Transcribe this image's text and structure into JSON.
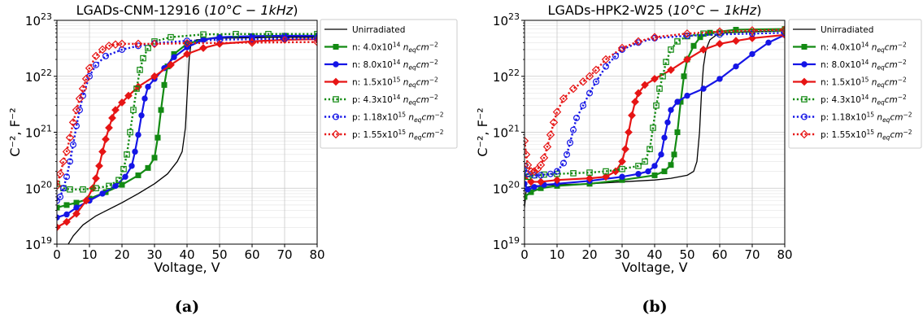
{
  "panels": [
    {
      "caption": "(a)",
      "title_main": "LGADs-CNM-12916 (",
      "title_math": "10°C − 1kHz",
      "title_close": ")",
      "xlabel": "Voltage, V",
      "ylabel": "C⁻², F⁻²"
    },
    {
      "caption": "(b)",
      "title_main": "LGADs-HPK2-W25 (",
      "title_math": "10°C − 1kHz",
      "title_close": ")",
      "xlabel": "Voltage, V",
      "ylabel": "C⁻², F⁻²"
    }
  ],
  "legend": [
    {
      "prefix": "",
      "mantissa": "",
      "exp": "",
      "label": "Unirradiated"
    },
    {
      "prefix": "n: ",
      "mantissa": "4.0x10",
      "exp": "14"
    },
    {
      "prefix": "n: ",
      "mantissa": "8.0x10",
      "exp": "14"
    },
    {
      "prefix": "n: ",
      "mantissa": "1.5x10",
      "exp": "15"
    },
    {
      "prefix": "p: ",
      "mantissa": "4.3x10",
      "exp": "14"
    },
    {
      "prefix": "p: ",
      "mantissa": "1.18x10",
      "exp": "15"
    },
    {
      "prefix": "p: ",
      "mantissa": "1.55x10",
      "exp": "15"
    }
  ],
  "legend_unit": {
    "n": "n",
    "sub": "eq",
    "cm": "cm",
    "exp": "−2"
  },
  "colors": {
    "unirr": "#000000",
    "green": "#138a13",
    "blue": "#1515e6",
    "red": "#e61515"
  },
  "chart_data": [
    {
      "type": "line",
      "title": "LGADs-CNM-12916 (10°C − 1kHz)",
      "xlabel": "Voltage, V",
      "ylabel": "C⁻², F⁻²",
      "xlim": [
        0,
        80
      ],
      "ylim": [
        1e+19,
        1e+23
      ],
      "yscale": "log",
      "grid": true,
      "xticks": [
        "0",
        "10",
        "20",
        "30",
        "40",
        "50",
        "60",
        "70",
        "80"
      ],
      "yticks": [
        {
          "base": "10",
          "exp": "19",
          "value": 1e+19
        },
        {
          "base": "10",
          "exp": "20",
          "value": 1e+20
        },
        {
          "base": "10",
          "exp": "21",
          "value": 1e+21
        },
        {
          "base": "10",
          "exp": "22",
          "value": 1e+22
        },
        {
          "base": "10",
          "exp": "23",
          "value": 1e+23
        }
      ],
      "series": [
        {
          "name": "Unirradiated",
          "color": "#000000",
          "style": "solid",
          "marker": "none",
          "x": [
            3,
            5,
            8,
            12,
            16,
            20,
            25,
            30,
            34,
            37,
            38.5,
            39.5,
            40.2,
            40.7,
            41.2,
            43,
            50,
            60,
            70,
            80
          ],
          "y": [
            9e+18,
            1.4e+19,
            2.2e+19,
            3.2e+19,
            4.2e+19,
            5.5e+19,
            8e+19,
            1.2e+20,
            1.8e+20,
            3e+20,
            4.5e+20,
            1.2e+21,
            7e+21,
            2.2e+22,
            3.8e+22,
            4.5e+22,
            4.8e+22,
            4.9e+22,
            5e+22,
            5e+22
          ]
        },
        {
          "name": "n: 4.0x10^14 n_eq cm^-2",
          "color": "#138a13",
          "style": "solid",
          "marker": "square",
          "x": [
            0,
            3,
            6,
            10,
            15,
            20,
            25,
            28,
            30,
            31,
            32,
            33,
            34,
            36,
            40,
            45,
            50,
            60,
            70,
            80
          ],
          "y": [
            4.5e+19,
            5e+19,
            5.5e+19,
            6.5e+19,
            8.5e+19,
            1.15e+20,
            1.7e+20,
            2.3e+20,
            3.5e+20,
            8e+20,
            2.5e+21,
            7e+21,
            1.5e+22,
            2.5e+22,
            3.8e+22,
            4.6e+22,
            5e+22,
            5.2e+22,
            5.3e+22,
            5.3e+22
          ]
        },
        {
          "name": "n: 8.0x10^14 n_eq cm^-2",
          "color": "#1515e6",
          "style": "solid",
          "marker": "circle",
          "x": [
            0,
            3,
            6,
            10,
            14,
            18,
            21,
            23,
            24,
            25,
            26,
            27,
            28,
            30,
            33,
            36,
            40,
            45,
            50,
            60,
            70,
            80
          ],
          "y": [
            3e+19,
            3.4e+19,
            4.5e+19,
            6e+19,
            8e+19,
            1.1e+20,
            1.6e+20,
            2.5e+20,
            4.5e+20,
            9e+20,
            2e+21,
            4e+21,
            6.5e+21,
            9e+21,
            1.4e+22,
            2.2e+22,
            3.3e+22,
            4.5e+22,
            5e+22,
            5.2e+22,
            5.3e+22,
            5.3e+22
          ]
        },
        {
          "name": "n: 1.5x10^15 n_eq cm^-2",
          "color": "#e61515",
          "style": "solid",
          "marker": "diamond",
          "x": [
            0,
            3,
            6,
            9,
            11,
            12,
            13,
            14,
            15,
            16,
            17,
            18,
            20,
            22,
            25,
            30,
            35,
            40,
            45,
            50,
            60,
            70,
            80
          ],
          "y": [
            2e+19,
            2.5e+19,
            3.5e+19,
            6e+19,
            1e+20,
            1.5e+20,
            2.5e+20,
            4.5e+20,
            7.5e+20,
            1.2e+21,
            1.8e+21,
            2.5e+21,
            3.4e+21,
            4.5e+21,
            6.5e+21,
            1e+22,
            1.6e+22,
            2.5e+22,
            3.2e+22,
            3.8e+22,
            4.2e+22,
            4.5e+22,
            4.6e+22
          ]
        },
        {
          "name": "p: 4.3x10^14 n_eq cm^-2",
          "color": "#138a13",
          "style": "dotted",
          "marker": "square-open",
          "x": [
            0,
            2,
            4,
            8,
            12,
            16,
            19,
            20.5,
            21.5,
            22.5,
            23.5,
            24.5,
            25.5,
            26.5,
            28,
            30,
            35,
            45,
            55,
            65,
            80
          ],
          "y": [
            1.2e+20,
            1e+20,
            9.5e+19,
            9.5e+19,
            1e+20,
            1.1e+20,
            1.4e+20,
            2.2e+20,
            4e+20,
            1e+21,
            2.5e+21,
            6e+21,
            1.3e+22,
            2.1e+22,
            3.2e+22,
            4.2e+22,
            5e+22,
            5.6e+22,
            5.7e+22,
            5.7e+22,
            5.7e+22
          ]
        },
        {
          "name": "p: 1.18x10^15 n_eq cm^-2",
          "color": "#1515e6",
          "style": "dotted",
          "marker": "circle-open",
          "x": [
            0,
            1,
            2,
            3,
            4,
            5,
            6,
            7,
            8,
            10,
            12,
            15,
            20,
            25,
            30,
            40,
            50,
            60,
            70,
            80
          ],
          "y": [
            6e+19,
            7e+19,
            1e+20,
            1.6e+20,
            3e+20,
            6e+20,
            1.3e+21,
            2.5e+21,
            4.5e+21,
            1e+22,
            1.6e+22,
            2.3e+22,
            3e+22,
            3.5e+22,
            3.9e+22,
            4.3e+22,
            4.5e+22,
            4.6e+22,
            4.7e+22,
            4.7e+22
          ]
        },
        {
          "name": "p: 1.55x10^15 n_eq cm^-2",
          "color": "#e61515",
          "style": "dotted",
          "marker": "diamond-open",
          "x": [
            0,
            1,
            2,
            3,
            4,
            5,
            6,
            7,
            8,
            9,
            10,
            12,
            14,
            16,
            18,
            20,
            25,
            30,
            40,
            60,
            80
          ],
          "y": [
            1.1e+20,
            1.8e+20,
            3e+20,
            4.5e+20,
            8e+20,
            1.5e+21,
            2.5e+21,
            4e+21,
            6e+21,
            9e+21,
            1.4e+22,
            2.3e+22,
            3e+22,
            3.5e+22,
            3.7e+22,
            3.8e+22,
            3.8e+22,
            3.8e+22,
            3.9e+22,
            4e+22,
            4.1e+22
          ]
        }
      ]
    },
    {
      "type": "line",
      "title": "LGADs-HPK2-W25 (10°C − 1kHz)",
      "xlabel": "Voltage, V",
      "ylabel": "C⁻², F⁻²",
      "xlim": [
        0,
        80
      ],
      "ylim": [
        1e+19,
        1e+23
      ],
      "yscale": "log",
      "grid": true,
      "xticks": [
        "0",
        "10",
        "20",
        "30",
        "40",
        "50",
        "60",
        "70",
        "80"
      ],
      "yticks": [
        {
          "base": "10",
          "exp": "19",
          "value": 1e+19
        },
        {
          "base": "10",
          "exp": "20",
          "value": 1e+20
        },
        {
          "base": "10",
          "exp": "21",
          "value": 1e+21
        },
        {
          "base": "10",
          "exp": "22",
          "value": 1e+22
        },
        {
          "base": "10",
          "exp": "23",
          "value": 1e+23
        }
      ],
      "series": [
        {
          "name": "Unirradiated",
          "color": "#000000",
          "style": "solid",
          "marker": "none",
          "x": [
            0,
            0.5,
            1,
            3,
            10,
            20,
            30,
            40,
            45,
            50,
            52,
            53,
            53.8,
            54.4,
            55,
            55.8,
            57,
            59,
            62,
            70,
            80
          ],
          "y": [
            4.5e+19,
            9e+19,
            1.05e+20,
            1.1e+20,
            1.15e+20,
            1.2e+20,
            1.3e+20,
            1.4e+20,
            1.5e+20,
            1.7e+20,
            2e+20,
            3e+20,
            1e+21,
            5e+21,
            1.5e+22,
            3e+22,
            4.5e+22,
            5.5e+22,
            6e+22,
            6.3e+22,
            6.5e+22
          ]
        },
        {
          "name": "n: 4.0x10^14 n_eq cm^-2",
          "color": "#138a13",
          "style": "solid",
          "marker": "square",
          "x": [
            0,
            2,
            5,
            10,
            20,
            30,
            40,
            43,
            45,
            46,
            47,
            48,
            49,
            50,
            52,
            54,
            57,
            65,
            80
          ],
          "y": [
            7e+19,
            8.5e+19,
            1e+20,
            1.1e+20,
            1.2e+20,
            1.4e+20,
            1.7e+20,
            2e+20,
            2.6e+20,
            4e+20,
            1e+21,
            3.5e+21,
            1e+22,
            2e+22,
            3.5e+22,
            5e+22,
            6e+22,
            6.8e+22,
            7e+22
          ]
        },
        {
          "name": "n: 8.0x10^14 n_eq cm^-2",
          "color": "#1515e6",
          "style": "solid",
          "marker": "circle",
          "x": [
            0,
            1,
            3,
            6,
            10,
            20,
            30,
            35,
            38,
            40,
            42,
            43,
            44,
            45,
            47,
            50,
            55,
            60,
            65,
            70,
            75,
            80
          ],
          "y": [
            1.2e+20,
            9.5e+19,
            1.05e+20,
            1.15e+20,
            1.2e+20,
            1.35e+20,
            1.6e+20,
            1.8e+20,
            2e+20,
            2.5e+20,
            4e+20,
            8e+20,
            1.5e+21,
            2.5e+21,
            3.5e+21,
            4.5e+21,
            6e+21,
            9e+21,
            1.5e+22,
            2.5e+22,
            4e+22,
            5.5e+22
          ]
        },
        {
          "name": "n: 1.5x10^15 n_eq cm^-2",
          "color": "#e61515",
          "style": "solid",
          "marker": "diamond",
          "x": [
            0,
            2,
            5,
            10,
            20,
            25,
            28,
            30,
            31,
            32,
            33,
            34,
            35,
            37,
            40,
            45,
            50,
            55,
            60,
            65,
            70,
            80
          ],
          "y": [
            1.6e+20,
            1.3e+20,
            1.3e+20,
            1.4e+20,
            1.5e+20,
            1.6e+20,
            2e+20,
            3e+20,
            5e+20,
            1e+21,
            2e+21,
            3.5e+21,
            5e+21,
            7e+21,
            9e+21,
            1.3e+22,
            2e+22,
            3e+22,
            3.8e+22,
            4.3e+22,
            4.8e+22,
            5.5e+22
          ]
        },
        {
          "name": "p: 4.3x10^14 n_eq cm^-2",
          "color": "#138a13",
          "style": "dotted",
          "marker": "square-open",
          "x": [
            0,
            1,
            3,
            6,
            10,
            15,
            20,
            25,
            30,
            35,
            37,
            38.5,
            39.5,
            40.5,
            41.5,
            42.5,
            43.5,
            45,
            47,
            50,
            55,
            60,
            70,
            80
          ],
          "y": [
            2.5e+20,
            1.6e+20,
            1.7e+20,
            1.75e+20,
            1.8e+20,
            1.85e+20,
            1.9e+20,
            2e+20,
            2.2e+20,
            2.5e+20,
            3e+20,
            5e+20,
            1.2e+21,
            3e+21,
            6e+21,
            1e+22,
            1.8e+22,
            3e+22,
            4.2e+22,
            5.2e+22,
            5.8e+22,
            6e+22,
            6.3e+22,
            6.5e+22
          ]
        },
        {
          "name": "p: 1.18x10^15 n_eq cm^-2",
          "color": "#1515e6",
          "style": "dotted",
          "marker": "circle-open",
          "x": [
            0,
            1,
            3,
            5,
            8,
            10,
            12,
            13,
            14,
            15,
            16,
            18,
            20,
            22,
            25,
            28,
            30,
            35,
            40,
            50,
            60,
            70,
            80
          ],
          "y": [
            2.5e+20,
            1.8e+20,
            1.7e+20,
            1.7e+20,
            1.8e+20,
            2e+20,
            2.8e+20,
            4e+20,
            6.5e+20,
            1.1e+21,
            1.8e+21,
            3e+21,
            5e+21,
            8e+21,
            1.5e+22,
            2.3e+22,
            3e+22,
            4e+22,
            4.8e+22,
            5.3e+22,
            5.6e+22,
            5.8e+22,
            6e+22
          ]
        },
        {
          "name": "p: 1.55x10^15 n_eq cm^-2",
          "color": "#e61515",
          "style": "dotted",
          "marker": "diamond-open",
          "x": [
            0,
            0.5,
            1,
            2,
            3,
            4,
            5,
            6,
            7,
            8,
            9,
            10,
            12,
            15,
            18,
            20,
            22,
            25,
            30,
            35,
            40,
            50,
            60,
            70,
            80
          ],
          "y": [
            7e+20,
            4e+20,
            2.6e+20,
            2e+20,
            2e+20,
            2.2e+20,
            2.6e+20,
            3.5e+20,
            5.5e+20,
            9e+20,
            1.5e+21,
            2.3e+21,
            4e+21,
            6e+21,
            8e+21,
            1e+22,
            1.3e+22,
            2e+22,
            3.2e+22,
            4.2e+22,
            5e+22,
            5.8e+22,
            6.3e+22,
            6.6e+22,
            6.8e+22
          ]
        }
      ]
    }
  ]
}
